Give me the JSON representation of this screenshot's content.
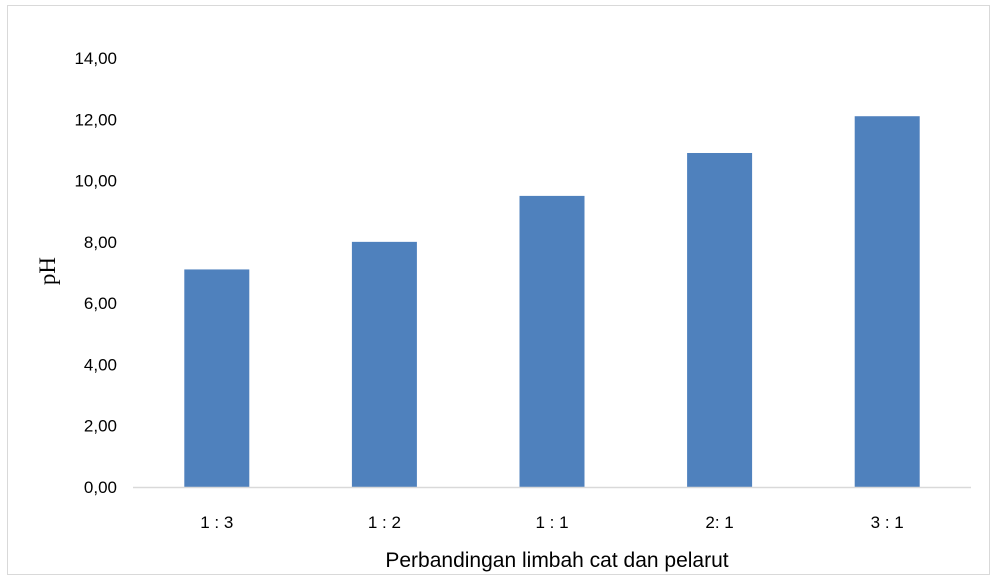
{
  "chart_data": {
    "type": "bar",
    "categories": [
      "1 : 3",
      "1 : 2",
      "1 : 1",
      "2: 1",
      "3 : 1"
    ],
    "values": [
      7.1,
      8.0,
      9.5,
      10.9,
      12.1
    ],
    "xlabel": "Perbandingan limbah cat dan pelarut",
    "ylabel": "pH",
    "ylim": [
      0,
      14
    ],
    "ytick_step": 2,
    "ytick_labels": [
      "0,00",
      "2,00",
      "4,00",
      "6,00",
      "8,00",
      "10,00",
      "12,00",
      "14,00"
    ],
    "bar_color": "#4f81bd",
    "axis_color": "#d9d9d9",
    "grid": false,
    "legend": "none"
  }
}
